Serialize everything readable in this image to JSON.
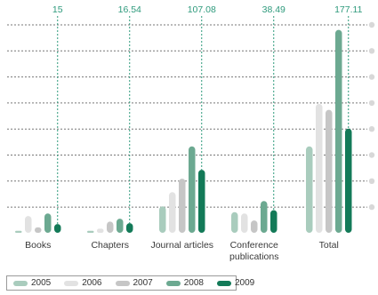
{
  "chart_data": {
    "type": "bar",
    "categories": [
      "Books",
      "Chapters",
      "Journal articles",
      "Conference publications",
      "Total"
    ],
    "category_lines": [
      [
        "Books"
      ],
      [
        "Chapters"
      ],
      [
        "Journal articles"
      ],
      [
        "Conference",
        "publications"
      ],
      [
        "Total"
      ]
    ],
    "series": [
      {
        "name": "2005",
        "color": "#a9ccbd",
        "values": [
          3.5,
          3.3,
          45,
          35,
          147
        ]
      },
      {
        "name": "2006",
        "color": "#e2e2e2",
        "values": [
          28.5,
          6.9,
          69,
          33,
          219
        ]
      },
      {
        "name": "2007",
        "color": "#c6c6c6",
        "values": [
          9.2,
          19,
          92,
          21,
          209
        ]
      },
      {
        "name": "2008",
        "color": "#6ca991",
        "values": [
          33,
          24,
          147,
          54,
          345
        ]
      },
      {
        "name": "2009",
        "color": "#137a58",
        "values": [
          15,
          16.54,
          107.08,
          38.49,
          177.11
        ]
      }
    ],
    "totals": [
      "15",
      "16.54",
      "107.08",
      "38.49",
      "177.11"
    ],
    "ylim": [
      0,
      355
    ],
    "grid": true,
    "legend_position": "bottom-left",
    "colors": {
      "gridline": "#777777",
      "axis_dot": "#d8d8d8",
      "highlight_line": "#2e9a7c"
    }
  }
}
